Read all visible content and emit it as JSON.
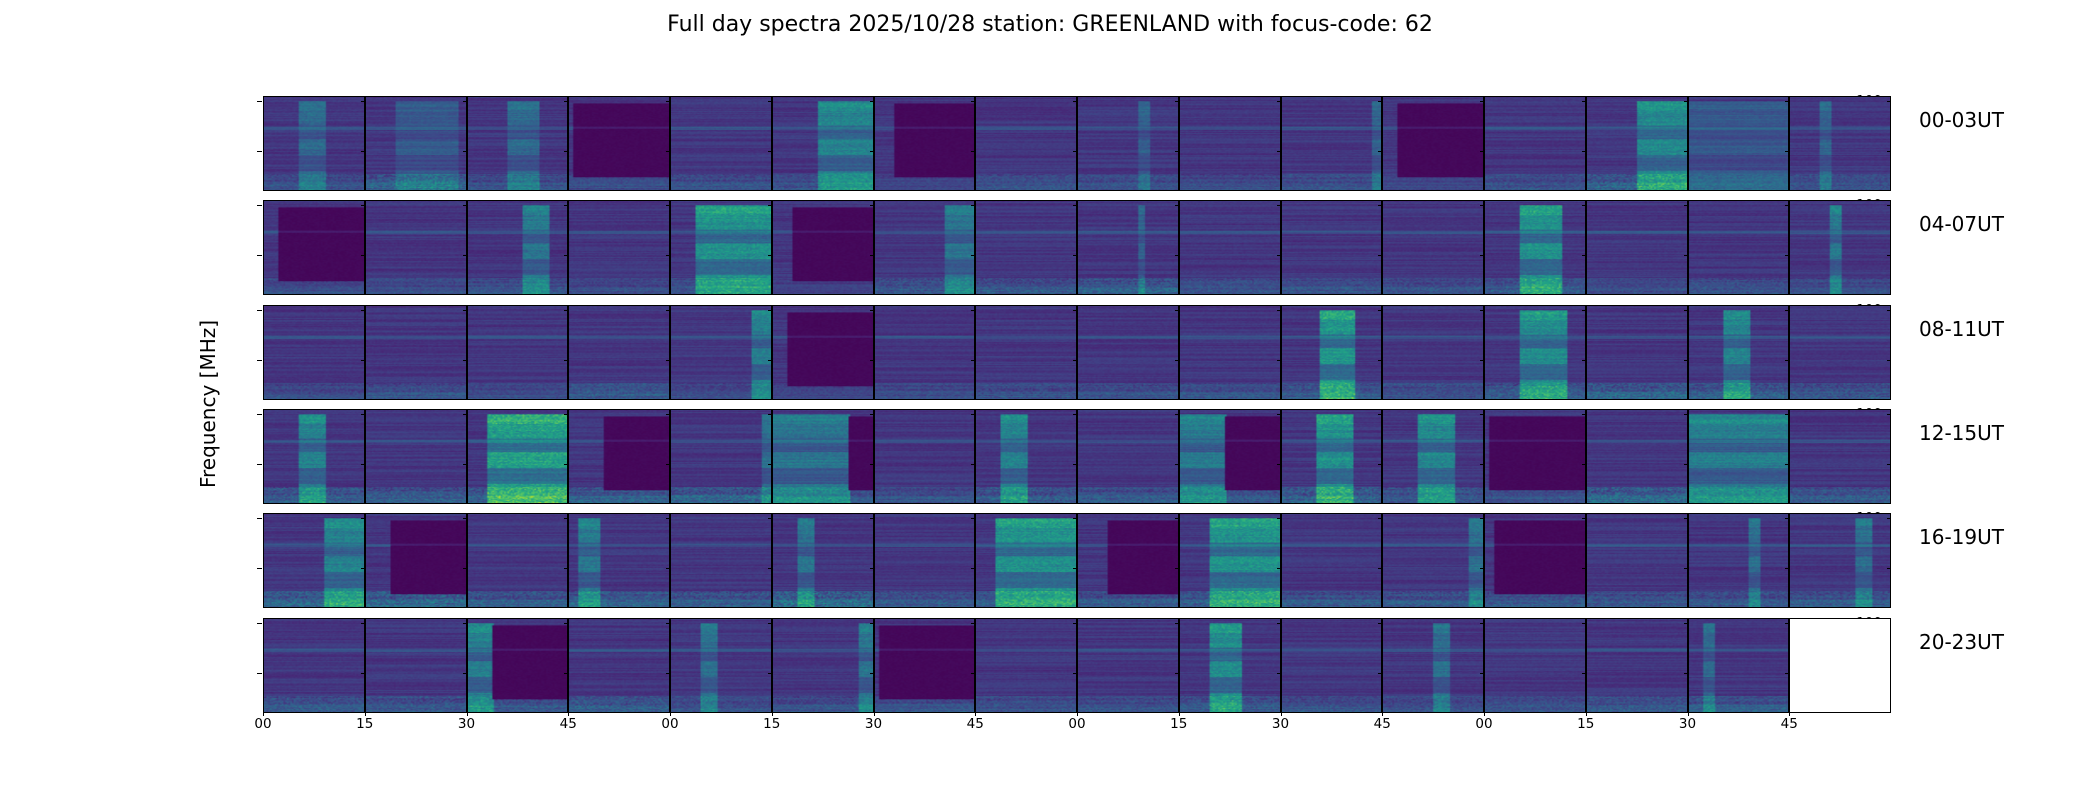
{
  "title": "Full day spectra 2025/10/28 station: GREENLAND with focus-code: 62",
  "chart_data": {
    "type": "heatmap",
    "title": "Full day spectra 2025/10/28 station: GREENLAND with focus-code: 62",
    "ylabel": "Frequency [MHz]",
    "xlabel": "",
    "colormap": "viridis",
    "ylim": [
      10,
      105
    ],
    "yticks": [
      100,
      50
    ],
    "xtick_labels": [
      "00",
      "15",
      "30",
      "45",
      "00",
      "15",
      "30",
      "45",
      "00",
      "15",
      "30",
      "45",
      "00",
      "15",
      "30",
      "45"
    ],
    "panel_minutes": 15,
    "rows": [
      {
        "label": "00-03UT",
        "panels": [
          {
            "burst": [
              0.35,
              0.6,
              0.45
            ],
            "rfi": 0.5
          },
          {
            "burst": [
              0.3,
              0.9,
              0.3
            ],
            "rfi": 0.8
          },
          {
            "burst": [
              0.4,
              0.7,
              0.45
            ],
            "rfi": 0.5
          },
          {
            "dark": [
              0.05,
              1.0
            ],
            "rfi": 0.4
          },
          {
            "rfi": 0.5
          },
          {
            "burst": [
              0.45,
              1.0,
              0.7
            ],
            "rfi": 0.5
          },
          {
            "dark": [
              0.2,
              1.0
            ],
            "rfi": 0.3
          },
          {
            "rfi": 0.5
          },
          {
            "burst": [
              0.6,
              0.7,
              0.35
            ],
            "rfi": 0.5
          },
          {
            "rfi": 0.4
          },
          {
            "burst": [
              0.9,
              1.0,
              0.4
            ],
            "rfi": 0.5
          },
          {
            "dark": [
              0.15,
              1.0
            ],
            "rfi": 0.3
          },
          {
            "rfi": 0.5
          },
          {
            "burst": [
              0.5,
              1.0,
              0.75
            ],
            "rfi": 0.8
          },
          {
            "burst": [
              0.0,
              1.0,
              0.3
            ],
            "rfi": 0.4
          },
          {
            "burst": [
              0.3,
              0.4,
              0.4
            ],
            "rfi": 0.5
          }
        ]
      },
      {
        "label": "04-07UT",
        "panels": [
          {
            "dark": [
              0.15,
              1.0
            ],
            "rfi": 0.4
          },
          {
            "rfi": 0.4
          },
          {
            "burst": [
              0.55,
              0.8,
              0.6
            ],
            "rfi": 0.5
          },
          {
            "rfi": 0.4
          },
          {
            "burst": [
              0.25,
              1.0,
              0.85
            ],
            "rfi": 0.5
          },
          {
            "dark": [
              0.2,
              1.0
            ],
            "rfi": 0.2
          },
          {
            "burst": [
              0.7,
              1.0,
              0.55
            ],
            "rfi": 0.6
          },
          {
            "rfi": 0.6
          },
          {
            "burst": [
              0.6,
              0.66,
              0.4
            ],
            "rfi": 0.7
          },
          {
            "rfi": 0.5
          },
          {
            "rfi": 0.5
          },
          {
            "rfi": 0.5
          },
          {
            "burst": [
              0.35,
              0.75,
              0.85
            ],
            "rfi": 0.6
          },
          {
            "rfi": 0.4
          },
          {
            "rfi": 0.5
          },
          {
            "burst": [
              0.4,
              0.5,
              0.6
            ],
            "rfi": 0.4
          }
        ]
      },
      {
        "label": "08-11UT",
        "panels": [
          {
            "rfi": 0.4
          },
          {
            "rfi": 0.5
          },
          {
            "rfi": 0.4
          },
          {
            "rfi": 0.6
          },
          {
            "burst": [
              0.8,
              1.0,
              0.65
            ],
            "rfi": 0.4
          },
          {
            "dark": [
              0.15,
              1.0
            ],
            "rfi": 0.3
          },
          {
            "rfi": 0.4
          },
          {
            "rfi": 0.5
          },
          {
            "rfi": 0.5
          },
          {
            "rfi": 0.5
          },
          {
            "burst": [
              0.38,
              0.72,
              0.9
            ],
            "rfi": 0.6
          },
          {
            "rfi": 0.5
          },
          {
            "burst": [
              0.35,
              0.8,
              0.8
            ],
            "rfi": 0.7
          },
          {
            "rfi": 0.8
          },
          {
            "burst": [
              0.35,
              0.6,
              0.7
            ],
            "rfi": 0.7
          },
          {
            "rfi": 0.6
          }
        ]
      },
      {
        "label": "12-15UT",
        "panels": [
          {
            "burst": [
              0.35,
              0.6,
              0.7
            ],
            "rfi": 0.7
          },
          {
            "rfi": 0.7
          },
          {
            "burst": [
              0.2,
              1.0,
              1.0
            ],
            "rfi": 0.7
          },
          {
            "dark": [
              0.35,
              1.0
            ],
            "rfi": 0.7
          },
          {
            "burst": [
              0.9,
              1.0,
              0.5
            ],
            "rfi": 0.8
          },
          {
            "burst": [
              0.0,
              0.75,
              0.55
            ],
            "dark": [
              0.75,
              1.0
            ],
            "rfi": 0.6
          },
          {
            "rfi": 0.5
          },
          {
            "burst": [
              0.25,
              0.5,
              0.7
            ],
            "rfi": 0.7
          },
          {
            "rfi": 0.6
          },
          {
            "burst": [
              0.0,
              0.45,
              0.6
            ],
            "dark": [
              0.45,
              1.0
            ],
            "rfi": 0.6
          },
          {
            "burst": [
              0.35,
              0.7,
              0.85
            ],
            "rfi": 0.8
          },
          {
            "burst": [
              0.35,
              0.7,
              0.75
            ],
            "rfi": 0.6
          },
          {
            "dark": [
              0.05,
              1.0
            ],
            "rfi": 0.5
          },
          {
            "rfi": 0.9
          },
          {
            "burst": [
              0.0,
              1.0,
              0.65
            ],
            "rfi": 0.6
          },
          {
            "rfi": 0.6
          }
        ]
      },
      {
        "label": "16-19UT",
        "panels": [
          {
            "burst": [
              0.6,
              1.0,
              0.7
            ],
            "rfi": 0.8
          },
          {
            "dark": [
              0.25,
              1.0
            ],
            "rfi": 0.9
          },
          {
            "rfi": 0.7
          },
          {
            "burst": [
              0.1,
              0.3,
              0.6
            ],
            "rfi": 0.7
          },
          {
            "rfi": 0.7
          },
          {
            "burst": [
              0.25,
              0.4,
              0.55
            ],
            "rfi": 1.0
          },
          {
            "rfi": 0.6
          },
          {
            "burst": [
              0.2,
              1.0,
              0.85
            ],
            "rfi": 0.6
          },
          {
            "dark": [
              0.3,
              1.0
            ],
            "rfi": 0.6
          },
          {
            "burst": [
              0.3,
              1.0,
              0.85
            ],
            "rfi": 0.7
          },
          {
            "rfi": 0.6
          },
          {
            "burst": [
              0.85,
              1.0,
              0.5
            ],
            "rfi": 0.6
          },
          {
            "dark": [
              0.1,
              1.0
            ],
            "rfi": 0.6
          },
          {
            "rfi": 0.6
          },
          {
            "burst": [
              0.6,
              0.7,
              0.5
            ],
            "rfi": 0.6
          },
          {
            "burst": [
              0.65,
              0.8,
              0.5
            ],
            "rfi": 0.6
          }
        ]
      },
      {
        "label": "20-23UT",
        "panels": [
          {
            "rfi": 0.6
          },
          {
            "rfi": 0.6
          },
          {
            "burst": [
              0.0,
              0.25,
              0.65
            ],
            "dark": [
              0.25,
              1.0
            ],
            "rfi": 0.6
          },
          {
            "rfi": 0.7
          },
          {
            "burst": [
              0.3,
              0.45,
              0.5
            ],
            "rfi": 0.5
          },
          {
            "burst": [
              0.85,
              1.0,
              0.55
            ],
            "rfi": 0.5
          },
          {
            "dark": [
              0.05,
              1.0
            ],
            "rfi": 0.5
          },
          {
            "rfi": 0.5
          },
          {
            "rfi": 0.5
          },
          {
            "burst": [
              0.3,
              0.6,
              0.8
            ],
            "rfi": 0.6
          },
          {
            "rfi": 0.5
          },
          {
            "burst": [
              0.5,
              0.65,
              0.5
            ],
            "rfi": 0.5
          },
          {
            "rfi": 0.5
          },
          {
            "rfi": 0.6
          },
          {
            "burst": [
              0.15,
              0.25,
              0.45
            ],
            "rfi": 0.6
          },
          {
            "empty": true
          }
        ]
      }
    ]
  }
}
